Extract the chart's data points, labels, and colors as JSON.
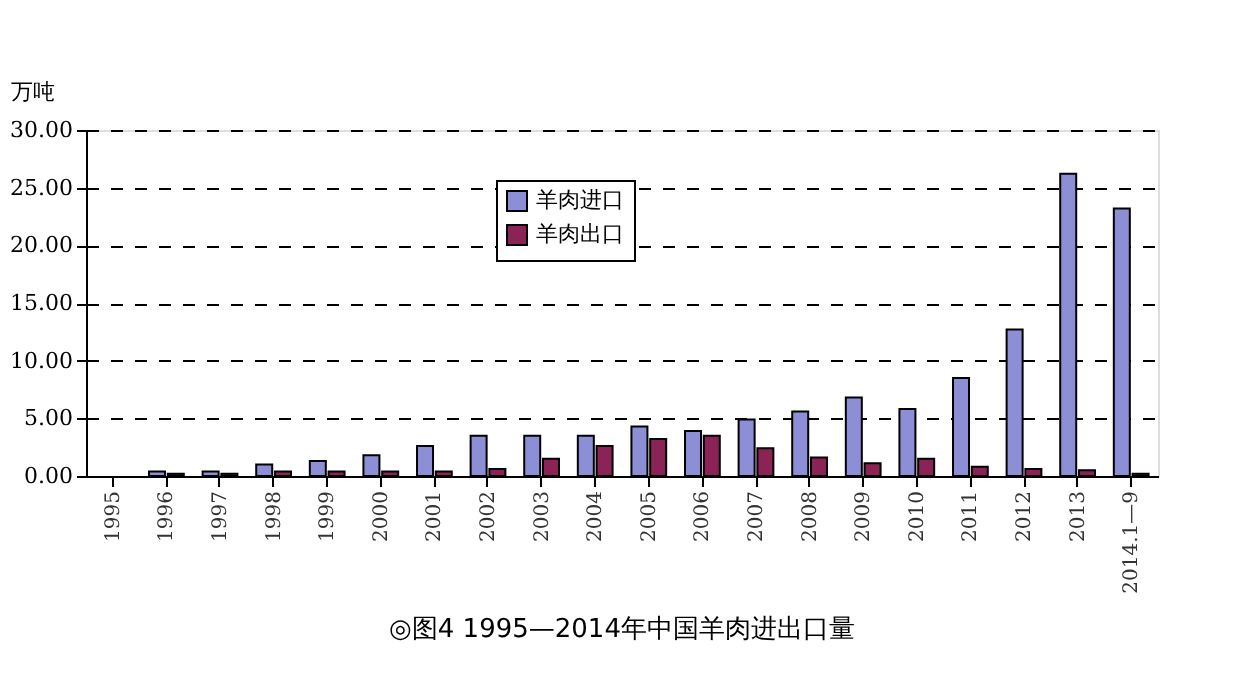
{
  "chart_data": {
    "type": "bar",
    "title": "◎图4 1995—2014年中国羊肉进出口量",
    "ylabel": "万吨",
    "categories": [
      "1995",
      "1996",
      "1997",
      "1998",
      "1999",
      "2000",
      "2001",
      "2002",
      "2003",
      "2004",
      "2005",
      "2006",
      "2007",
      "2008",
      "2009",
      "2010",
      "2011",
      "2012",
      "2013",
      "2014.1—9"
    ],
    "series": [
      {
        "name": "羊肉进口",
        "color": "#8c8fd6",
        "values": [
          null,
          0.4,
          0.4,
          1.0,
          1.3,
          1.8,
          2.6,
          3.5,
          3.5,
          3.5,
          4.3,
          3.9,
          4.9,
          5.6,
          6.8,
          5.8,
          8.5,
          12.7,
          26.2,
          23.2
        ]
      },
      {
        "name": "羊肉出口",
        "color": "#8b2356",
        "values": [
          null,
          0.2,
          0.2,
          0.4,
          0.4,
          0.4,
          0.4,
          0.6,
          1.5,
          2.6,
          3.2,
          3.5,
          2.4,
          1.6,
          1.1,
          1.5,
          0.8,
          0.6,
          0.5,
          0.2
        ]
      }
    ],
    "ylim": [
      0,
      30
    ],
    "yticks": [
      {
        "value": 0,
        "label": "0.00"
      },
      {
        "value": 5,
        "label": "5.00"
      },
      {
        "value": 10,
        "label": "10.00"
      },
      {
        "value": 15,
        "label": "15.00"
      },
      {
        "value": 20,
        "label": "20.00"
      },
      {
        "value": 25,
        "label": "25.00"
      },
      {
        "value": 30,
        "label": "30.00"
      }
    ],
    "grid": "y",
    "legend": "top"
  }
}
